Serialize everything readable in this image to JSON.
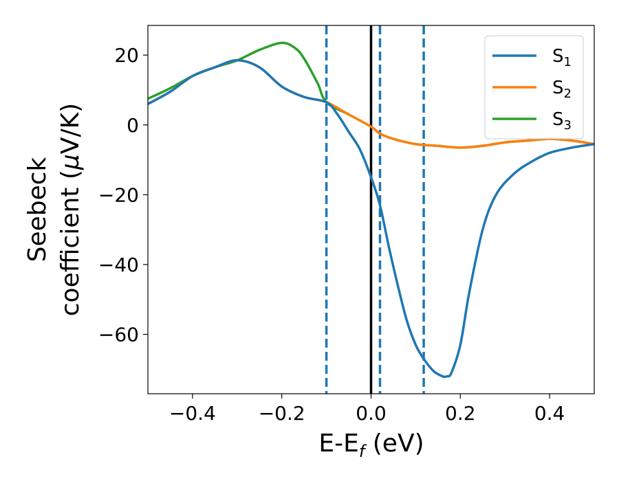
{
  "chart_data": {
    "type": "line",
    "xlabel": {
      "main": "E-E",
      "sub": "f",
      "tail": " (eV)"
    },
    "ylabel": {
      "line1": "Seebeck",
      "line2_pre": "coefficient  (",
      "line2_mu": "μ",
      "line2_post": "V/K)"
    },
    "xlim": [
      -0.5,
      0.5
    ],
    "ylim": [
      -77,
      28.5
    ],
    "xticks": [
      -0.4,
      -0.2,
      0.0,
      0.2,
      0.4
    ],
    "xtick_labels": [
      "−0.4",
      "−0.2",
      "0.0",
      "0.2",
      "0.4"
    ],
    "yticks": [
      20,
      0,
      -20,
      -40,
      -60
    ],
    "ytick_labels": [
      "20",
      "0",
      "−20",
      "−40",
      "−60"
    ],
    "grid": false,
    "legend_position": "top-right",
    "vlines": [
      {
        "x": 0.0,
        "style": "solid",
        "color": "#000000"
      },
      {
        "x": -0.1,
        "style": "dashed",
        "color": "#1f77b4"
      },
      {
        "x": 0.02,
        "style": "dashed",
        "color": "#1f77b4"
      },
      {
        "x": 0.118,
        "style": "dashed",
        "color": "#1f77b4"
      }
    ],
    "series": [
      {
        "name": "S",
        "sub": "1",
        "color": "#1f77b4",
        "x": [
          -0.5,
          -0.45,
          -0.4,
          -0.35,
          -0.3,
          -0.25,
          -0.2,
          -0.15,
          -0.1,
          -0.075,
          -0.05,
          -0.025,
          0.0,
          0.02,
          0.04,
          0.06,
          0.08,
          0.1,
          0.118,
          0.14,
          0.16,
          0.17,
          0.18,
          0.2,
          0.22,
          0.25,
          0.28,
          0.32,
          0.36,
          0.4,
          0.45,
          0.5
        ],
        "y": [
          6,
          9.5,
          14,
          16.5,
          18.5,
          16.5,
          11,
          8,
          6.5,
          3,
          -2,
          -7,
          -15,
          -23,
          -35,
          -46,
          -56,
          -63,
          -67,
          -70.5,
          -72,
          -72,
          -71,
          -63,
          -48,
          -30,
          -20,
          -14,
          -10.5,
          -8,
          -6.5,
          -5.5
        ]
      },
      {
        "name": "S",
        "sub": "2",
        "color": "#ff7f0e",
        "x": [
          -0.5,
          -0.45,
          -0.4,
          -0.35,
          -0.3,
          -0.25,
          -0.2,
          -0.15,
          -0.1,
          -0.05,
          0.0,
          0.02,
          0.05,
          0.1,
          0.15,
          0.2,
          0.25,
          0.3,
          0.35,
          0.4,
          0.45,
          0.5
        ],
        "y": [
          6,
          9.5,
          14,
          16.5,
          18.5,
          16.5,
          11,
          8,
          6.5,
          3,
          -0.5,
          -2.5,
          -4,
          -5.5,
          -6,
          -6.5,
          -6,
          -5,
          -4.5,
          -4,
          -4.5,
          -5.5
        ]
      },
      {
        "name": "S",
        "sub": "3",
        "color": "#2ca02c",
        "x": [
          -0.5,
          -0.45,
          -0.4,
          -0.35,
          -0.3,
          -0.25,
          -0.2,
          -0.17,
          -0.15,
          -0.12,
          -0.1,
          -0.05,
          0.0,
          0.02,
          0.05,
          0.1,
          0.15,
          0.2,
          0.25,
          0.3,
          0.35,
          0.4,
          0.45,
          0.5
        ],
        "y": [
          7.5,
          10.5,
          14,
          16.5,
          18.5,
          21.5,
          23.5,
          22,
          19,
          12,
          6.5,
          3,
          -0.5,
          -2.5,
          -4,
          -5.5,
          -6,
          -6.5,
          -6,
          -5,
          -4.5,
          -4,
          -4.5,
          -5.5
        ]
      }
    ]
  }
}
